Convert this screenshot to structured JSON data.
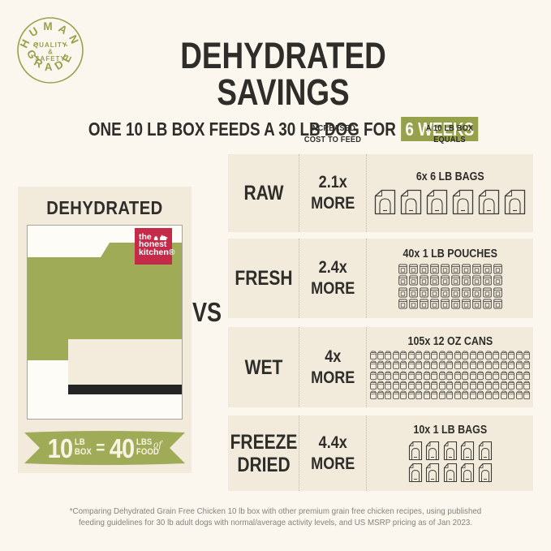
{
  "colors": {
    "bg": "#fbf7ee",
    "panel": "#f2ebdc",
    "green": "#96a24b",
    "green-box": "#9fab56",
    "red": "#c42b49",
    "dark": "#2e2d29",
    "icon-stroke": "#3b3a35",
    "black-bar": "#242424"
  },
  "badge": {
    "top": "HUMAN",
    "bottom": "GRADE",
    "center_line1": "QUALITY",
    "center_line2": "&",
    "center_line3": "SAFETY"
  },
  "header": {
    "title": "DEHYDRATED SAVINGS",
    "subtitle_prefix": "ONE 10 LB BOX FEEDS A 30 LB DOG FOR",
    "subtitle_highlight": "6 WEEKS"
  },
  "product_card": {
    "title": "DEHYDRATED",
    "logo": {
      "line1": "the",
      "line2": "honest",
      "line3": "kitchen®"
    },
    "ribbon": {
      "num1": "10",
      "unit1a": "LB",
      "unit1b": "BOX",
      "equals": "=",
      "num2": "40",
      "unit2a": "LBS",
      "of": "of",
      "unit2b": "FOOD"
    }
  },
  "vs_label": "VS",
  "table": {
    "col_headers": [
      "INCREASED\nCOST TO FEED",
      "A 10 LB BOX\nEQUALS"
    ],
    "rows": [
      {
        "label": "RAW",
        "cost": "2.1x",
        "more": "MORE",
        "equals": "6x 6 LB BAGS",
        "icon": "bag-large",
        "count": 6,
        "cols": 6
      },
      {
        "label": "FRESH",
        "cost": "2.4x",
        "more": "MORE",
        "equals": "40x 1 LB POUCHES",
        "icon": "pouch",
        "count": 40,
        "cols": 10
      },
      {
        "label": "WET",
        "cost": "4x",
        "more": "MORE",
        "equals": "105x 12 OZ CANS",
        "icon": "can",
        "count": 105,
        "cols": 21
      },
      {
        "label": "FREEZE DRIED",
        "cost": "4.4x",
        "more": "MORE",
        "equals": "10x 1 LB BAGS",
        "icon": "bag-small",
        "count": 10,
        "cols": 5
      }
    ]
  },
  "footer": {
    "disclaimer": "*Comparing Dehydrated Grain Free Chicken 10 lb box with other premium grain free chicken recipes, using published\nfeeding guidelines for 30 lb adult dogs with normal/average activity levels, and US MSRP pricing as of Jan 2023."
  }
}
